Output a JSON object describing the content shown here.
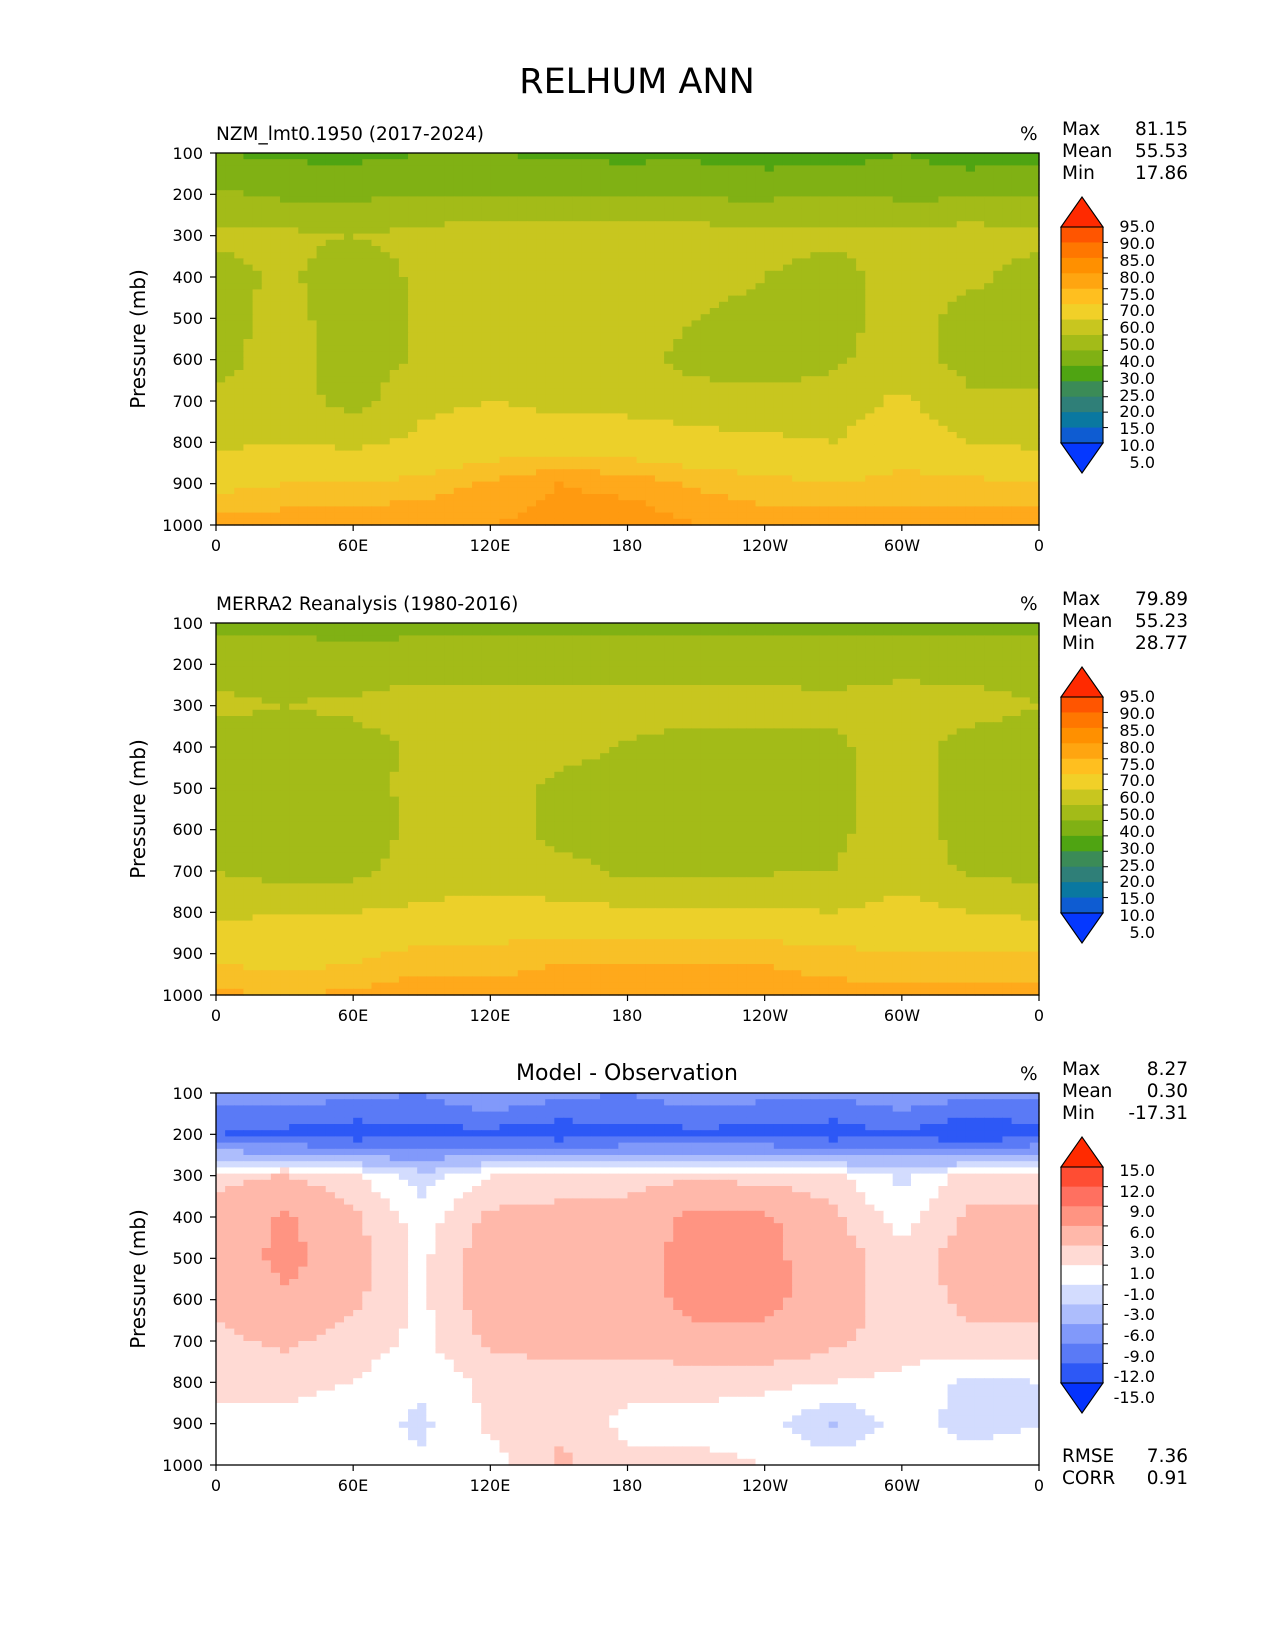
{
  "figure_title": "RELHUM ANN",
  "shared": {
    "ylabel": "Pressure (mb)",
    "unit": "%",
    "x_ticks": [
      "0",
      "60E",
      "120E",
      "180",
      "120W",
      "60W",
      "0"
    ],
    "y_ticks": [
      "100",
      "200",
      "300",
      "400",
      "500",
      "600",
      "700",
      "800",
      "900",
      "1000"
    ],
    "stat_labels": {
      "max": "Max",
      "mean": "Mean",
      "min": "Min",
      "rmse": "RMSE",
      "corr": "CORR"
    }
  },
  "chart_data": [
    {
      "type": "heatmap",
      "title": "NZM_lmt0.1950 (2017-2024)",
      "xlabel": "",
      "ylabel": "Pressure (mb)",
      "xlim": [
        0,
        360
      ],
      "ylim": [
        1000,
        100
      ],
      "stats": {
        "max": "81.15",
        "mean": "55.53",
        "min": "17.86"
      },
      "colorbar": {
        "ticks": [
          "95.0",
          "90.0",
          "85.0",
          "80.0",
          "75.0",
          "70.0",
          "60.0",
          "50.0",
          "40.0",
          "30.0",
          "25.0",
          "20.0",
          "15.0",
          "10.0",
          "5.0"
        ],
        "colors": [
          "#ff2a00",
          "#ff5500",
          "#ff7700",
          "#ff9000",
          "#ffa510",
          "#ffbf1f",
          "#f1d028",
          "#c8c61f",
          "#a3bb18",
          "#80b114",
          "#4fa412",
          "#3b8b57",
          "#2f7f78",
          "#0a78a0",
          "#0e5cd2",
          "#0538ff"
        ]
      },
      "palette": [
        "#ff9a10",
        "#ffa91b",
        "#f8c027",
        "#ecd02a",
        "#c8c61f",
        "#a3bb18",
        "#80b114",
        "#4fa412",
        "#3b8b57"
      ],
      "grid_lon": [
        0,
        30,
        60,
        90,
        120,
        150,
        180,
        210,
        240,
        270,
        300,
        330,
        360
      ],
      "grid_p": [
        100,
        200,
        300,
        400,
        500,
        600,
        700,
        800,
        900,
        1000
      ],
      "grid_values": [
        [
          30,
          28,
          27,
          30,
          30,
          28,
          27,
          28,
          25,
          25,
          30,
          25,
          26
        ],
        [
          42,
          38,
          38,
          40,
          40,
          38,
          40,
          38,
          38,
          40,
          38,
          38,
          40
        ],
        [
          52,
          52,
          50,
          53,
          55,
          55,
          55,
          55,
          53,
          52,
          53,
          55,
          52
        ],
        [
          46,
          52,
          44,
          52,
          55,
          55,
          55,
          55,
          50,
          46,
          55,
          52,
          46
        ],
        [
          46,
          54,
          44,
          52,
          56,
          56,
          55,
          50,
          46,
          46,
          55,
          46,
          46
        ],
        [
          46,
          55,
          44,
          52,
          56,
          56,
          55,
          46,
          45,
          48,
          55,
          46,
          46
        ],
        [
          52,
          55,
          46,
          58,
          60,
          58,
          57,
          55,
          53,
          55,
          62,
          52,
          52
        ],
        [
          58,
          60,
          58,
          62,
          65,
          65,
          65,
          63,
          62,
          60,
          66,
          60,
          58
        ],
        [
          68,
          70,
          70,
          72,
          76,
          80,
          78,
          74,
          72,
          70,
          72,
          72,
          70
        ],
        [
          77,
          78,
          78,
          80,
          80,
          82,
          84,
          80,
          78,
          78,
          78,
          78,
          78
        ]
      ]
    },
    {
      "type": "heatmap",
      "title": "MERRA2 Reanalysis (1980-2016)",
      "xlabel": "",
      "ylabel": "Pressure (mb)",
      "xlim": [
        0,
        360
      ],
      "ylim": [
        1000,
        100
      ],
      "stats": {
        "max": "79.89",
        "mean": "55.23",
        "min": "28.77"
      },
      "colorbar": {
        "ticks": [
          "95.0",
          "90.0",
          "85.0",
          "80.0",
          "75.0",
          "70.0",
          "60.0",
          "50.0",
          "40.0",
          "30.0",
          "25.0",
          "20.0",
          "15.0",
          "10.0",
          "5.0"
        ],
        "colors": [
          "#ff2a00",
          "#ff5500",
          "#ff7700",
          "#ff9000",
          "#ffa510",
          "#ffbf1f",
          "#f1d028",
          "#c8c61f",
          "#a3bb18",
          "#80b114",
          "#4fa412",
          "#3b8b57",
          "#2f7f78",
          "#0a78a0",
          "#0e5cd2",
          "#0538ff"
        ]
      },
      "palette": [
        "#ff9a10",
        "#ffa91b",
        "#f8c027",
        "#ecd02a",
        "#c8c61f",
        "#a3bb18",
        "#80b114",
        "#4fa412",
        "#3b8b57"
      ],
      "grid_lon": [
        0,
        30,
        60,
        90,
        120,
        150,
        180,
        210,
        240,
        270,
        300,
        330,
        360
      ],
      "grid_p": [
        100,
        200,
        300,
        400,
        500,
        600,
        700,
        800,
        900,
        1000
      ],
      "grid_values": [
        [
          37,
          38,
          36,
          37,
          38,
          37,
          37,
          37,
          37,
          37,
          38,
          37,
          37
        ],
        [
          46,
          46,
          44,
          46,
          46,
          46,
          46,
          46,
          46,
          46,
          46,
          46,
          46
        ],
        [
          52,
          50,
          52,
          55,
          55,
          55,
          55,
          54,
          54,
          52,
          56,
          54,
          50
        ],
        [
          46,
          46,
          46,
          52,
          55,
          54,
          49,
          46,
          46,
          48,
          55,
          46,
          46
        ],
        [
          46,
          45,
          46,
          53,
          55,
          47,
          46,
          44,
          46,
          48,
          55,
          46,
          46
        ],
        [
          46,
          45,
          45,
          52,
          55,
          47,
          46,
          46,
          46,
          48,
          55,
          46,
          46
        ],
        [
          50,
          46,
          47,
          55,
          56,
          53,
          48,
          48,
          49,
          50,
          57,
          48,
          47
        ],
        [
          58,
          60,
          60,
          62,
          63,
          63,
          62,
          62,
          61,
          60,
          63,
          60,
          58
        ],
        [
          68,
          66,
          68,
          72,
          72,
          74,
          74,
          74,
          74,
          72,
          70,
          70,
          70
        ],
        [
          76,
          75,
          76,
          78,
          77,
          78,
          78,
          78,
          78,
          77,
          77,
          77,
          77
        ]
      ]
    },
    {
      "type": "heatmap",
      "title": "Model - Observation",
      "xlabel": "",
      "ylabel": "Pressure (mb)",
      "xlim": [
        0,
        360
      ],
      "ylim": [
        1000,
        100
      ],
      "stats": {
        "max": "8.27",
        "mean": "0.30",
        "min": "-17.31",
        "rmse": "7.36",
        "corr": "0.91"
      },
      "colorbar": {
        "ticks": [
          "15.0",
          "12.0",
          "9.0",
          "6.0",
          "3.0",
          "1.0",
          "-1.0",
          "-3.0",
          "-6.0",
          "-9.0",
          "-12.0",
          "-15.0"
        ],
        "colors": [
          "#ff2a00",
          "#ff4d33",
          "#ff7060",
          "#ff9482",
          "#ffb8aa",
          "#ffdad4",
          "#ffffff",
          "#d3dcfe",
          "#adbdfc",
          "#8199fa",
          "#5a7af6",
          "#2d58f6",
          "#0533fd"
        ]
      },
      "grid_lon": [
        0,
        30,
        60,
        90,
        120,
        150,
        180,
        210,
        240,
        270,
        300,
        330,
        360
      ],
      "grid_p": [
        100,
        200,
        300,
        400,
        500,
        600,
        700,
        800,
        900,
        1000
      ],
      "grid_values": [
        [
          -8,
          -7,
          -8,
          -9,
          -6,
          -8,
          -9,
          -7,
          -8,
          -8,
          -7,
          -8,
          -8
        ],
        [
          -12,
          -13,
          -14,
          -13,
          -13,
          -14,
          -13,
          -13,
          -13,
          -14,
          -12,
          -15,
          -13
        ],
        [
          2.5,
          3,
          1.5,
          -2,
          1,
          1.5,
          2,
          2.5,
          2,
          1.5,
          -1.5,
          2,
          2
        ],
        [
          3.5,
          6.5,
          3.5,
          0,
          3.5,
          4,
          4,
          7,
          6.5,
          3.5,
          0,
          3.5,
          3.5
        ],
        [
          3.5,
          7,
          4,
          0.5,
          4.5,
          4.5,
          4,
          7.5,
          7,
          4,
          2,
          4,
          4
        ],
        [
          3.5,
          5.5,
          3.5,
          0.5,
          4.5,
          4.5,
          4.5,
          7,
          7,
          4,
          2,
          3.5,
          3.5
        ],
        [
          2.5,
          3.5,
          2,
          0.5,
          3.5,
          4,
          4,
          5,
          5,
          3.5,
          2,
          2.5,
          2.5
        ],
        [
          1.5,
          1.5,
          1,
          -0.5,
          1.5,
          2,
          1.5,
          1.5,
          1.5,
          1,
          0.5,
          -1.5,
          -1
        ],
        [
          0.5,
          0.5,
          0,
          -1.5,
          1.5,
          2.5,
          0.5,
          0.5,
          0,
          -3.5,
          0,
          -2,
          -1
        ],
        [
          0,
          0,
          0,
          -0.5,
          0,
          3.5,
          1.5,
          1.5,
          1,
          0.5,
          0.5,
          0.5,
          0
        ]
      ]
    }
  ]
}
